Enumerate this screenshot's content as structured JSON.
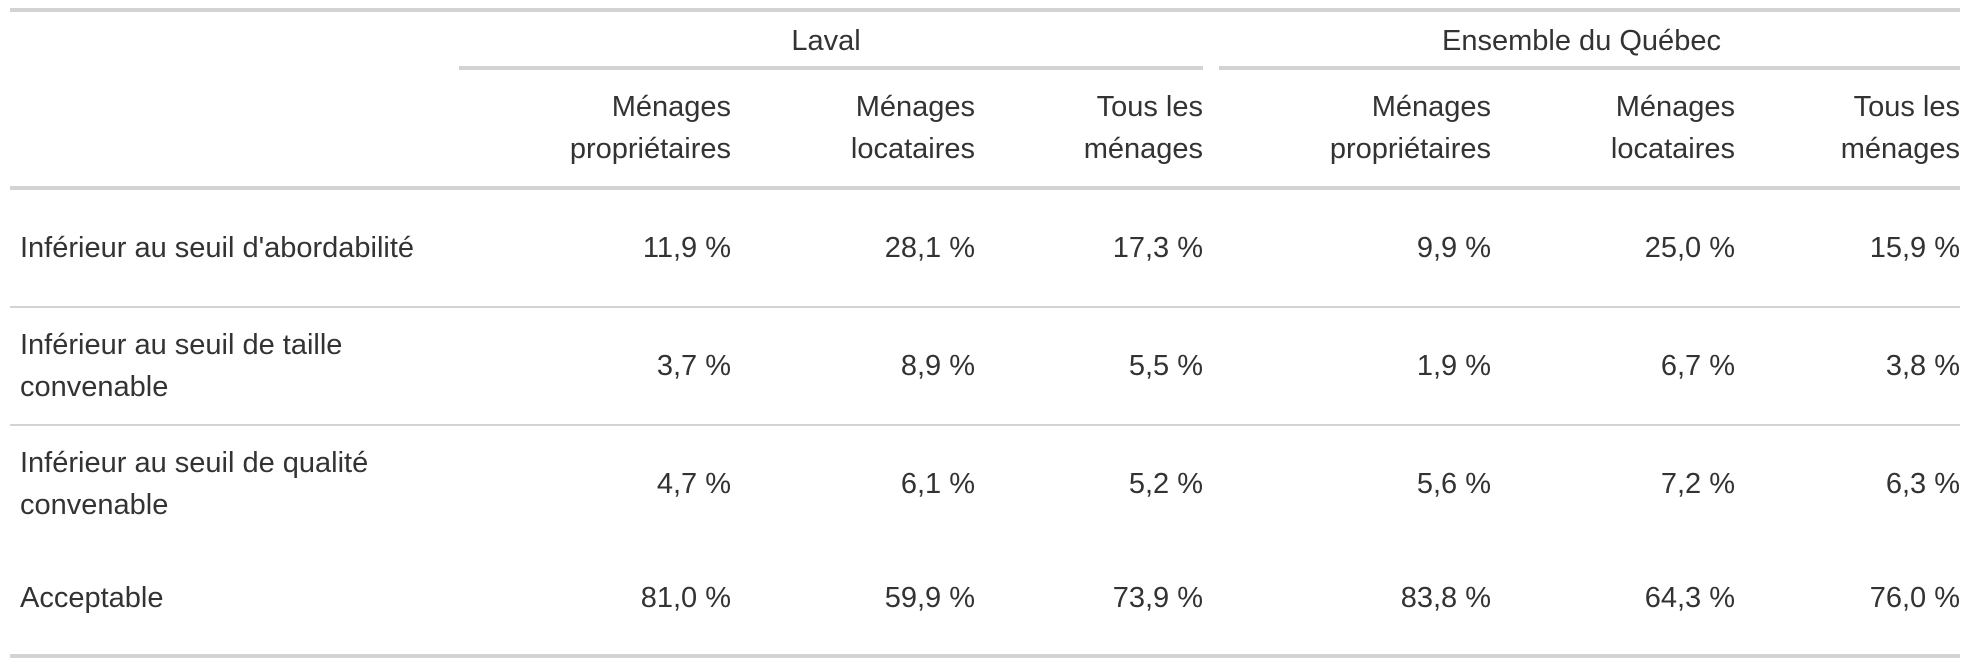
{
  "table": {
    "groups": [
      {
        "label": "Laval"
      },
      {
        "label": "Ensemble du Québec"
      }
    ],
    "columns": [
      {
        "label": "Ménages\npropriétaires"
      },
      {
        "label": "Ménages\nlocataires"
      },
      {
        "label": "Tous les\nménages"
      },
      {
        "label": "Ménages\npropriétaires"
      },
      {
        "label": "Ménages\nlocataires"
      },
      {
        "label": "Tous les\nménages"
      }
    ],
    "rows": [
      {
        "label": "Inférieur au seuil d'abordabilité",
        "values": [
          "11,9 %",
          "28,1 %",
          "17,3 %",
          "9,9 %",
          "25,0 %",
          "15,9 %"
        ]
      },
      {
        "label": "Inférieur au seuil de taille convenable",
        "values": [
          "3,7 %",
          "8,9 %",
          "5,5 %",
          "1,9 %",
          "6,7 %",
          "3,8 %"
        ]
      },
      {
        "label": "Inférieur au seuil de qualité convenable",
        "values": [
          "4,7 %",
          "6,1 %",
          "5,2 %",
          "5,6 %",
          "7,2 %",
          "6,3 %"
        ]
      },
      {
        "label": "Acceptable",
        "values": [
          "81,0 %",
          "59,9 %",
          "73,9 %",
          "83,8 %",
          "64,3 %",
          "76,0 %"
        ]
      }
    ]
  }
}
